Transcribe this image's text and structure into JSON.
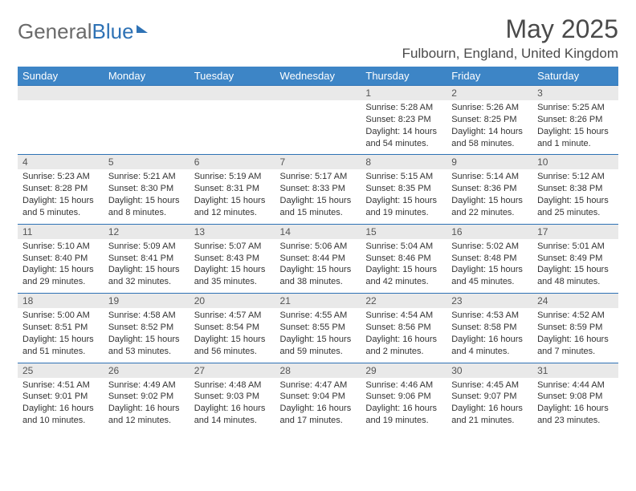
{
  "logo": {
    "text_a": "General",
    "text_b": "Blue"
  },
  "title": "May 2025",
  "location": "Fulbourn, England, United Kingdom",
  "daynames": [
    "Sunday",
    "Monday",
    "Tuesday",
    "Wednesday",
    "Thursday",
    "Friday",
    "Saturday"
  ],
  "colors": {
    "header_bg": "#3d85c6",
    "header_fg": "#ffffff",
    "numrow_bg": "#e9e9e9",
    "rule": "#2e72b5",
    "text": "#333333"
  },
  "weeks": [
    {
      "cells": [
        {
          "n": "",
          "sr": "",
          "ss": "",
          "dl": ""
        },
        {
          "n": "",
          "sr": "",
          "ss": "",
          "dl": ""
        },
        {
          "n": "",
          "sr": "",
          "ss": "",
          "dl": ""
        },
        {
          "n": "",
          "sr": "",
          "ss": "",
          "dl": ""
        },
        {
          "n": "1",
          "sr": "Sunrise: 5:28 AM",
          "ss": "Sunset: 8:23 PM",
          "dl": "Daylight: 14 hours and 54 minutes."
        },
        {
          "n": "2",
          "sr": "Sunrise: 5:26 AM",
          "ss": "Sunset: 8:25 PM",
          "dl": "Daylight: 14 hours and 58 minutes."
        },
        {
          "n": "3",
          "sr": "Sunrise: 5:25 AM",
          "ss": "Sunset: 8:26 PM",
          "dl": "Daylight: 15 hours and 1 minute."
        }
      ]
    },
    {
      "cells": [
        {
          "n": "4",
          "sr": "Sunrise: 5:23 AM",
          "ss": "Sunset: 8:28 PM",
          "dl": "Daylight: 15 hours and 5 minutes."
        },
        {
          "n": "5",
          "sr": "Sunrise: 5:21 AM",
          "ss": "Sunset: 8:30 PM",
          "dl": "Daylight: 15 hours and 8 minutes."
        },
        {
          "n": "6",
          "sr": "Sunrise: 5:19 AM",
          "ss": "Sunset: 8:31 PM",
          "dl": "Daylight: 15 hours and 12 minutes."
        },
        {
          "n": "7",
          "sr": "Sunrise: 5:17 AM",
          "ss": "Sunset: 8:33 PM",
          "dl": "Daylight: 15 hours and 15 minutes."
        },
        {
          "n": "8",
          "sr": "Sunrise: 5:15 AM",
          "ss": "Sunset: 8:35 PM",
          "dl": "Daylight: 15 hours and 19 minutes."
        },
        {
          "n": "9",
          "sr": "Sunrise: 5:14 AM",
          "ss": "Sunset: 8:36 PM",
          "dl": "Daylight: 15 hours and 22 minutes."
        },
        {
          "n": "10",
          "sr": "Sunrise: 5:12 AM",
          "ss": "Sunset: 8:38 PM",
          "dl": "Daylight: 15 hours and 25 minutes."
        }
      ]
    },
    {
      "cells": [
        {
          "n": "11",
          "sr": "Sunrise: 5:10 AM",
          "ss": "Sunset: 8:40 PM",
          "dl": "Daylight: 15 hours and 29 minutes."
        },
        {
          "n": "12",
          "sr": "Sunrise: 5:09 AM",
          "ss": "Sunset: 8:41 PM",
          "dl": "Daylight: 15 hours and 32 minutes."
        },
        {
          "n": "13",
          "sr": "Sunrise: 5:07 AM",
          "ss": "Sunset: 8:43 PM",
          "dl": "Daylight: 15 hours and 35 minutes."
        },
        {
          "n": "14",
          "sr": "Sunrise: 5:06 AM",
          "ss": "Sunset: 8:44 PM",
          "dl": "Daylight: 15 hours and 38 minutes."
        },
        {
          "n": "15",
          "sr": "Sunrise: 5:04 AM",
          "ss": "Sunset: 8:46 PM",
          "dl": "Daylight: 15 hours and 42 minutes."
        },
        {
          "n": "16",
          "sr": "Sunrise: 5:02 AM",
          "ss": "Sunset: 8:48 PM",
          "dl": "Daylight: 15 hours and 45 minutes."
        },
        {
          "n": "17",
          "sr": "Sunrise: 5:01 AM",
          "ss": "Sunset: 8:49 PM",
          "dl": "Daylight: 15 hours and 48 minutes."
        }
      ]
    },
    {
      "cells": [
        {
          "n": "18",
          "sr": "Sunrise: 5:00 AM",
          "ss": "Sunset: 8:51 PM",
          "dl": "Daylight: 15 hours and 51 minutes."
        },
        {
          "n": "19",
          "sr": "Sunrise: 4:58 AM",
          "ss": "Sunset: 8:52 PM",
          "dl": "Daylight: 15 hours and 53 minutes."
        },
        {
          "n": "20",
          "sr": "Sunrise: 4:57 AM",
          "ss": "Sunset: 8:54 PM",
          "dl": "Daylight: 15 hours and 56 minutes."
        },
        {
          "n": "21",
          "sr": "Sunrise: 4:55 AM",
          "ss": "Sunset: 8:55 PM",
          "dl": "Daylight: 15 hours and 59 minutes."
        },
        {
          "n": "22",
          "sr": "Sunrise: 4:54 AM",
          "ss": "Sunset: 8:56 PM",
          "dl": "Daylight: 16 hours and 2 minutes."
        },
        {
          "n": "23",
          "sr": "Sunrise: 4:53 AM",
          "ss": "Sunset: 8:58 PM",
          "dl": "Daylight: 16 hours and 4 minutes."
        },
        {
          "n": "24",
          "sr": "Sunrise: 4:52 AM",
          "ss": "Sunset: 8:59 PM",
          "dl": "Daylight: 16 hours and 7 minutes."
        }
      ]
    },
    {
      "cells": [
        {
          "n": "25",
          "sr": "Sunrise: 4:51 AM",
          "ss": "Sunset: 9:01 PM",
          "dl": "Daylight: 16 hours and 10 minutes."
        },
        {
          "n": "26",
          "sr": "Sunrise: 4:49 AM",
          "ss": "Sunset: 9:02 PM",
          "dl": "Daylight: 16 hours and 12 minutes."
        },
        {
          "n": "27",
          "sr": "Sunrise: 4:48 AM",
          "ss": "Sunset: 9:03 PM",
          "dl": "Daylight: 16 hours and 14 minutes."
        },
        {
          "n": "28",
          "sr": "Sunrise: 4:47 AM",
          "ss": "Sunset: 9:04 PM",
          "dl": "Daylight: 16 hours and 17 minutes."
        },
        {
          "n": "29",
          "sr": "Sunrise: 4:46 AM",
          "ss": "Sunset: 9:06 PM",
          "dl": "Daylight: 16 hours and 19 minutes."
        },
        {
          "n": "30",
          "sr": "Sunrise: 4:45 AM",
          "ss": "Sunset: 9:07 PM",
          "dl": "Daylight: 16 hours and 21 minutes."
        },
        {
          "n": "31",
          "sr": "Sunrise: 4:44 AM",
          "ss": "Sunset: 9:08 PM",
          "dl": "Daylight: 16 hours and 23 minutes."
        }
      ]
    }
  ]
}
